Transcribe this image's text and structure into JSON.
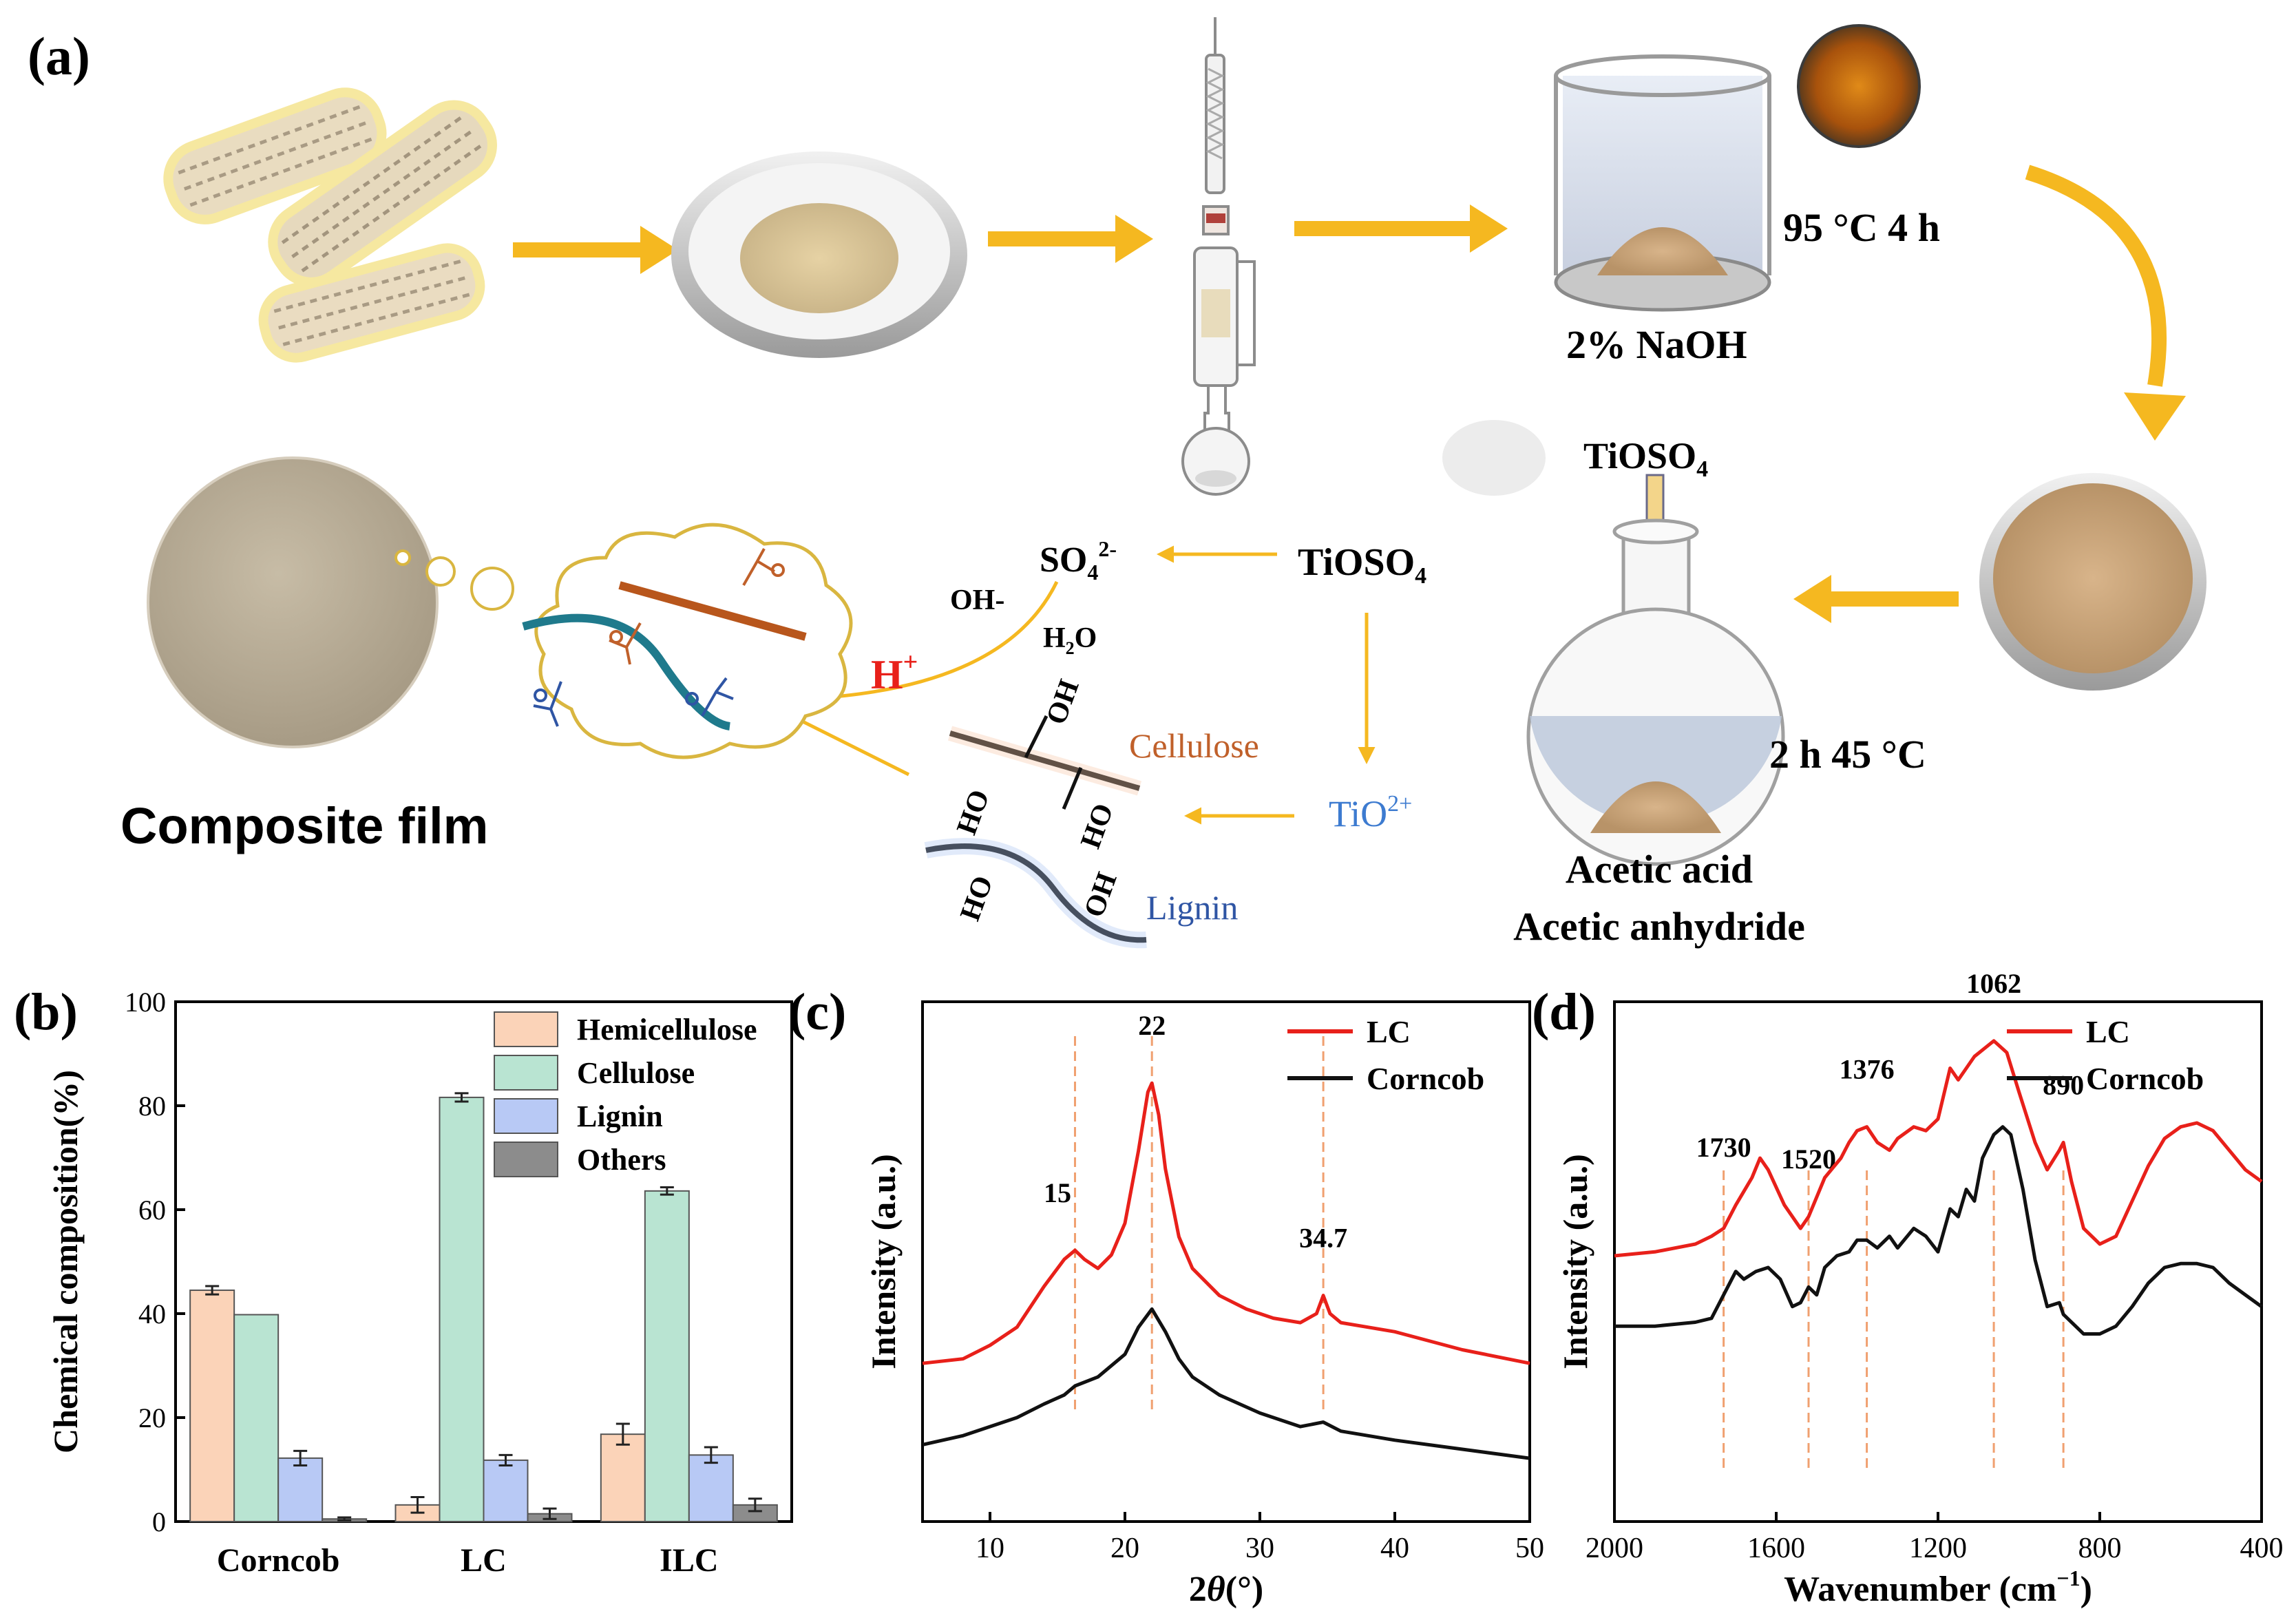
{
  "panel_a": {
    "label": "(a)",
    "condition_1": "95 °C 4 h",
    "naoh_label": "2% NaOH",
    "tioso4_top": "TiOSO",
    "tioso4_top_sub": "4",
    "condition_2": "2 h 45 °C",
    "reagent_1": "Acetic acid",
    "reagent_2": "Acetic anhydride",
    "composite_label": "Composite film",
    "hplus_label": "H",
    "hplus_sup": "+",
    "so4_label": "SO",
    "so4_sub": "4",
    "so4_sup": "2-",
    "tioso4_mid": "TiOSO",
    "tioso4_mid_sub": "4",
    "oh_label": "OH-",
    "h2o_label": "H",
    "h2o_sub": "2",
    "h2o_tail": "O",
    "tio_label": "TiO",
    "tio_sup": "2+",
    "cellulose_label": "Cellulose",
    "lignin_label": "Lignin",
    "ho_label": "HO",
    "oh_group": "OH",
    "colors": {
      "arrow": "#f5b820",
      "cellulose_text": "#c0602a",
      "lignin_text": "#2f55a4",
      "hplus": "#e8201a",
      "tio": "#3d7bd0",
      "brown_chain": "#b8561c",
      "teal_chain": "#1f7a8c"
    }
  },
  "chart_data": [
    {
      "panel": "(b)",
      "type": "bar",
      "categories": [
        "Corncob",
        "LC",
        "ILC"
      ],
      "series": [
        {
          "name": "Hemicellulose",
          "values": [
            44.5,
            3.2,
            16.8
          ],
          "errors": [
            0.8,
            1.5,
            2.0
          ],
          "color": "#fbd3b8"
        },
        {
          "name": "Cellulose",
          "values": [
            39.8,
            81.6,
            63.6
          ],
          "errors": [
            0.0,
            0.8,
            0.7
          ],
          "color": "#b9e4d2"
        },
        {
          "name": "Lignin",
          "values": [
            12.2,
            11.8,
            12.8
          ],
          "errors": [
            1.4,
            1.0,
            1.5
          ],
          "color": "#b8c9f5"
        },
        {
          "name": "Others",
          "values": [
            0.5,
            1.5,
            3.2
          ],
          "errors": [
            0.3,
            1.0,
            1.2
          ],
          "color": "#8c8c8c"
        }
      ],
      "xlabel": "",
      "ylabel": "Chemical composition(%)",
      "ylim": [
        0,
        100
      ],
      "yticks": [
        0,
        20,
        40,
        60,
        80,
        100
      ],
      "legend": "top-right"
    },
    {
      "panel": "(c)",
      "type": "line",
      "xlabel": "2θ(°)",
      "xlabel_main": "2",
      "xlabel_theta": "θ",
      "xlabel_tail": "(°)",
      "ylabel": "Intensity (a.u.)",
      "xlim": [
        5,
        50
      ],
      "xticks": [
        10,
        20,
        30,
        40,
        50
      ],
      "legend": "top-right",
      "series": [
        {
          "name": "LC",
          "color": "#e8201a",
          "points": [
            [
              5,
              0.35
            ],
            [
              8,
              0.36
            ],
            [
              10,
              0.39
            ],
            [
              12,
              0.43
            ],
            [
              14,
              0.52
            ],
            [
              15.5,
              0.58
            ],
            [
              16.3,
              0.6
            ],
            [
              17,
              0.58
            ],
            [
              18,
              0.56
            ],
            [
              19,
              0.59
            ],
            [
              20,
              0.66
            ],
            [
              21,
              0.82
            ],
            [
              21.7,
              0.95
            ],
            [
              22,
              0.97
            ],
            [
              22.5,
              0.9
            ],
            [
              23,
              0.78
            ],
            [
              24,
              0.63
            ],
            [
              25,
              0.56
            ],
            [
              27,
              0.5
            ],
            [
              29,
              0.47
            ],
            [
              31,
              0.45
            ],
            [
              33,
              0.44
            ],
            [
              34.2,
              0.46
            ],
            [
              34.7,
              0.5
            ],
            [
              35.2,
              0.46
            ],
            [
              36,
              0.44
            ],
            [
              38,
              0.43
            ],
            [
              40,
              0.42
            ],
            [
              45,
              0.38
            ],
            [
              50,
              0.35
            ]
          ]
        },
        {
          "name": "Corncob",
          "color": "#111111",
          "points": [
            [
              5,
              0.17
            ],
            [
              8,
              0.19
            ],
            [
              10,
              0.21
            ],
            [
              12,
              0.23
            ],
            [
              14,
              0.26
            ],
            [
              15.5,
              0.28
            ],
            [
              16.3,
              0.3
            ],
            [
              18,
              0.32
            ],
            [
              20,
              0.37
            ],
            [
              21,
              0.43
            ],
            [
              22,
              0.47
            ],
            [
              23,
              0.42
            ],
            [
              24,
              0.36
            ],
            [
              25,
              0.32
            ],
            [
              27,
              0.28
            ],
            [
              30,
              0.24
            ],
            [
              33,
              0.21
            ],
            [
              34.7,
              0.22
            ],
            [
              36,
              0.2
            ],
            [
              40,
              0.18
            ],
            [
              45,
              0.16
            ],
            [
              50,
              0.14
            ]
          ]
        }
      ],
      "annotations": [
        {
          "x": 15,
          "line_x": 16.3,
          "label": "15"
        },
        {
          "x": 22,
          "line_x": 22,
          "label": "22"
        },
        {
          "x": 34.7,
          "line_x": 34.7,
          "label": "34.7"
        }
      ]
    },
    {
      "panel": "(d)",
      "type": "line",
      "xlabel": "Wavenumber (cm⁻¹)",
      "xlabel_main": "Wavenumber (cm",
      "xlabel_sup": "−1",
      "xlabel_tail": ")",
      "ylabel": "Intensity (a.u.)",
      "xlim": [
        2000,
        400
      ],
      "xticks": [
        2000,
        1600,
        1200,
        800,
        400
      ],
      "legend": "top-right",
      "series": [
        {
          "name": "LC",
          "color": "#e8201a",
          "points": [
            [
              2000,
              0.23
            ],
            [
              1900,
              0.24
            ],
            [
              1800,
              0.26
            ],
            [
              1760,
              0.28
            ],
            [
              1730,
              0.3
            ],
            [
              1700,
              0.36
            ],
            [
              1660,
              0.43
            ],
            [
              1640,
              0.48
            ],
            [
              1620,
              0.45
            ],
            [
              1580,
              0.36
            ],
            [
              1540,
              0.3
            ],
            [
              1520,
              0.33
            ],
            [
              1480,
              0.43
            ],
            [
              1440,
              0.48
            ],
            [
              1420,
              0.52
            ],
            [
              1400,
              0.55
            ],
            [
              1376,
              0.56
            ],
            [
              1350,
              0.52
            ],
            [
              1320,
              0.5
            ],
            [
              1300,
              0.53
            ],
            [
              1260,
              0.56
            ],
            [
              1230,
              0.55
            ],
            [
              1200,
              0.58
            ],
            [
              1170,
              0.71
            ],
            [
              1150,
              0.68
            ],
            [
              1110,
              0.74
            ],
            [
              1062,
              0.78
            ],
            [
              1030,
              0.75
            ],
            [
              1000,
              0.65
            ],
            [
              960,
              0.52
            ],
            [
              930,
              0.45
            ],
            [
              900,
              0.5
            ],
            [
              890,
              0.52
            ],
            [
              870,
              0.42
            ],
            [
              840,
              0.3
            ],
            [
              800,
              0.26
            ],
            [
              760,
              0.28
            ],
            [
              720,
              0.37
            ],
            [
              680,
              0.46
            ],
            [
              640,
              0.53
            ],
            [
              600,
              0.56
            ],
            [
              560,
              0.57
            ],
            [
              520,
              0.55
            ],
            [
              480,
              0.5
            ],
            [
              440,
              0.45
            ],
            [
              400,
              0.42
            ]
          ]
        },
        {
          "name": "Corncob",
          "color": "#111111",
          "points": [
            [
              2000,
              0.05
            ],
            [
              1900,
              0.05
            ],
            [
              1800,
              0.06
            ],
            [
              1760,
              0.07
            ],
            [
              1730,
              0.13
            ],
            [
              1700,
              0.19
            ],
            [
              1680,
              0.17
            ],
            [
              1650,
              0.19
            ],
            [
              1620,
              0.2
            ],
            [
              1590,
              0.17
            ],
            [
              1560,
              0.1
            ],
            [
              1540,
              0.11
            ],
            [
              1520,
              0.15
            ],
            [
              1500,
              0.13
            ],
            [
              1480,
              0.2
            ],
            [
              1450,
              0.23
            ],
            [
              1420,
              0.24
            ],
            [
              1400,
              0.27
            ],
            [
              1376,
              0.27
            ],
            [
              1350,
              0.25
            ],
            [
              1320,
              0.28
            ],
            [
              1300,
              0.25
            ],
            [
              1260,
              0.3
            ],
            [
              1230,
              0.28
            ],
            [
              1200,
              0.24
            ],
            [
              1170,
              0.35
            ],
            [
              1150,
              0.33
            ],
            [
              1130,
              0.4
            ],
            [
              1110,
              0.37
            ],
            [
              1090,
              0.48
            ],
            [
              1062,
              0.54
            ],
            [
              1040,
              0.56
            ],
            [
              1020,
              0.54
            ],
            [
              990,
              0.4
            ],
            [
              960,
              0.22
            ],
            [
              930,
              0.1
            ],
            [
              900,
              0.11
            ],
            [
              890,
              0.08
            ],
            [
              860,
              0.05
            ],
            [
              840,
              0.03
            ],
            [
              800,
              0.03
            ],
            [
              760,
              0.05
            ],
            [
              720,
              0.1
            ],
            [
              680,
              0.16
            ],
            [
              640,
              0.2
            ],
            [
              600,
              0.21
            ],
            [
              560,
              0.21
            ],
            [
              520,
              0.2
            ],
            [
              480,
              0.16
            ],
            [
              440,
              0.13
            ],
            [
              400,
              0.1
            ]
          ]
        }
      ],
      "annotations": [
        {
          "x": 1730,
          "line_x": 1730,
          "label": "1730"
        },
        {
          "x": 1520,
          "line_x": 1520,
          "label": "1520"
        },
        {
          "x": 1376,
          "line_x": 1376,
          "label": "1376"
        },
        {
          "x": 1062,
          "line_x": 1062,
          "label": "1062"
        },
        {
          "x": 890,
          "line_x": 890,
          "label": "890"
        }
      ]
    }
  ]
}
